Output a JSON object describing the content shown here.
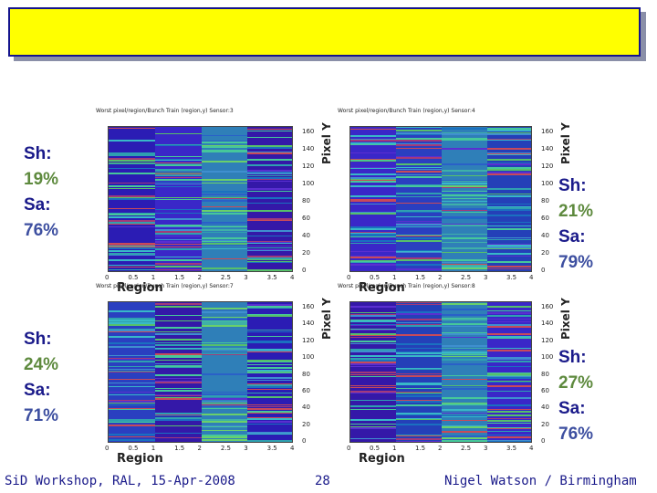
{
  "footer": {
    "left": "SiD Workshop, RAL, 15-Apr-2008",
    "page": "28",
    "right": "Nigel Watson / Birmingham"
  },
  "chart_data": [
    {
      "type": "heatmap",
      "title": "Worst pixel/region/Bunch Train (region,y) Sensor:3",
      "xlabel": "Region",
      "ylabel": "Pixel Y",
      "xlim": [
        0,
        4
      ],
      "ylim": [
        0,
        168
      ],
      "xticks": [
        "0",
        "0.5",
        "1",
        "1.5",
        "2",
        "2.5",
        "3",
        "3.5",
        "4"
      ],
      "yticks": [
        "0",
        "20",
        "40",
        "60",
        "80",
        "100",
        "120",
        "140",
        "160"
      ],
      "annotation": {
        "sh_label": "Sh:",
        "sh_value": "19%",
        "sa_label": "Sa:",
        "sa_value": "76%"
      }
    },
    {
      "type": "heatmap",
      "title": "Worst pixel/region/Bunch Train (region,y) Sensor:4",
      "xlabel": "Region",
      "ylabel": "Pixel Y",
      "xlim": [
        0,
        4
      ],
      "ylim": [
        0,
        168
      ],
      "xticks": [
        "0",
        "0.5",
        "1",
        "1.5",
        "2",
        "2.5",
        "3",
        "3.5",
        "4"
      ],
      "yticks": [
        "0",
        "20",
        "40",
        "60",
        "80",
        "100",
        "120",
        "140",
        "160"
      ],
      "annotation": {
        "sh_label": "Sh:",
        "sh_value": "21%",
        "sa_label": "Sa:",
        "sa_value": "79%"
      }
    },
    {
      "type": "heatmap",
      "title": "Worst pixel/region/Bunch Train (region,y) Sensor:7",
      "xlabel": "Region",
      "ylabel": "Pixel Y",
      "xlim": [
        0,
        4
      ],
      "ylim": [
        0,
        168
      ],
      "xticks": [
        "0",
        "0.5",
        "1",
        "1.5",
        "2",
        "2.5",
        "3",
        "3.5",
        "4"
      ],
      "yticks": [
        "0",
        "20",
        "40",
        "60",
        "80",
        "100",
        "120",
        "140",
        "160"
      ],
      "annotation": {
        "sh_label": "Sh:",
        "sh_value": "24%",
        "sa_label": "Sa:",
        "sa_value": "71%"
      }
    },
    {
      "type": "heatmap",
      "title": "Worst pixel/region/Bunch Train (region,y) Sensor:8",
      "xlabel": "Region",
      "ylabel": "Pixel Y",
      "xlim": [
        0,
        4
      ],
      "ylim": [
        0,
        168
      ],
      "xticks": [
        "0",
        "0.5",
        "1",
        "1.5",
        "2",
        "2.5",
        "3",
        "3.5",
        "4"
      ],
      "yticks": [
        "0",
        "20",
        "40",
        "60",
        "80",
        "100",
        "120",
        "140",
        "160"
      ],
      "annotation": {
        "sh_label": "Sh:",
        "sh_value": "27%",
        "sa_label": "Sa:",
        "sa_value": "76%"
      }
    }
  ]
}
